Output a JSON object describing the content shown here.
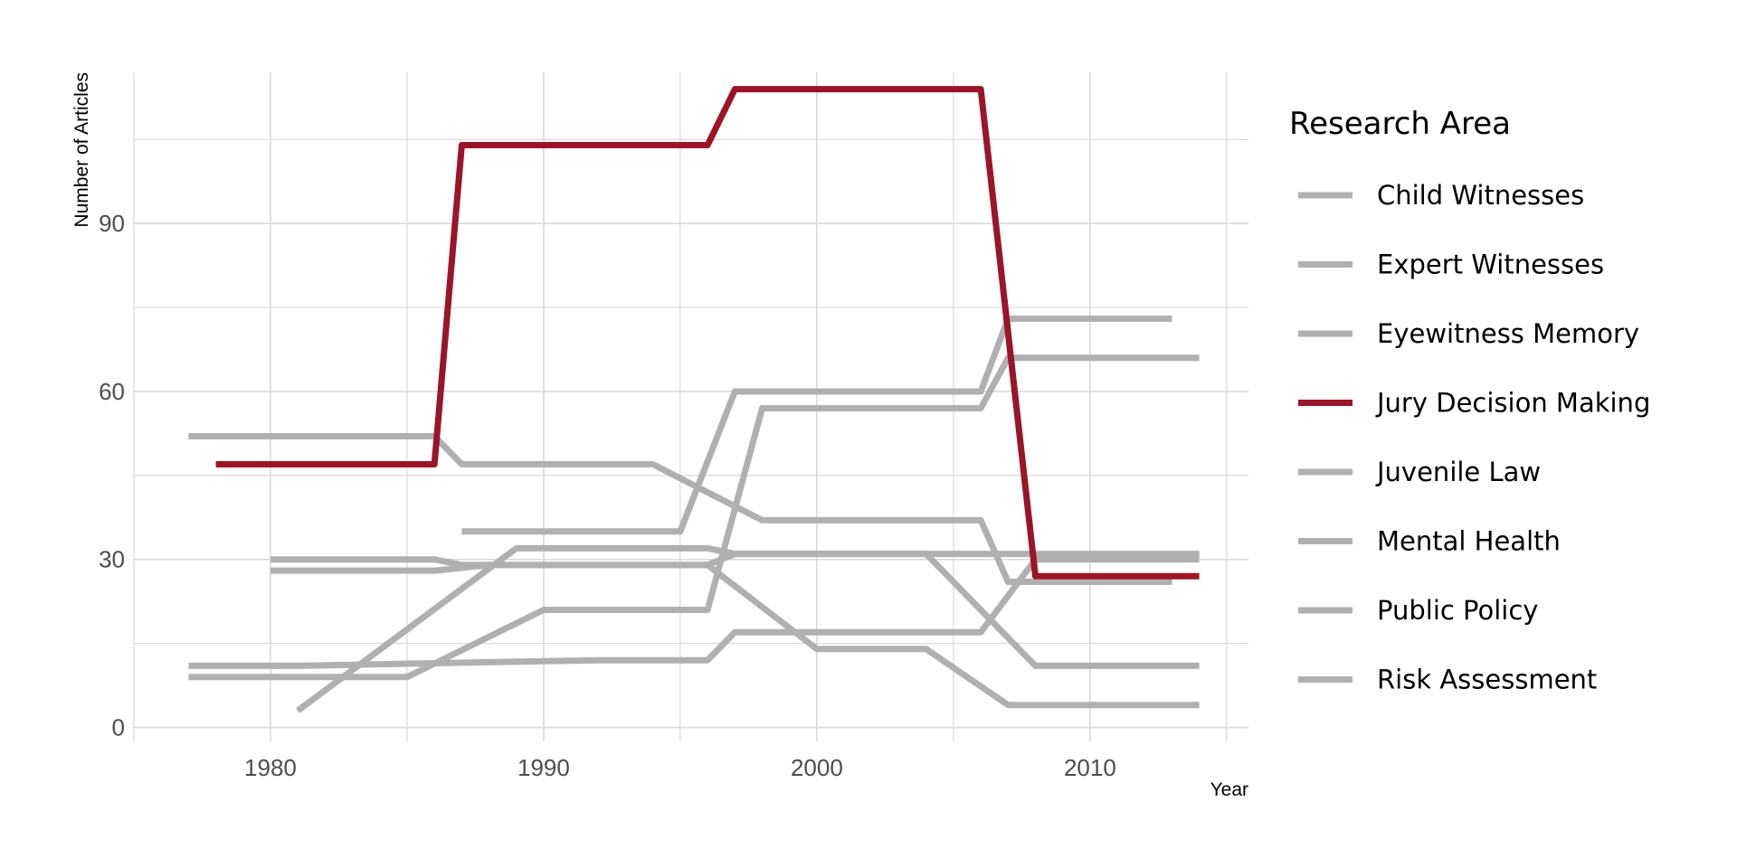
{
  "chart_data": {
    "type": "line",
    "xlabel": "Year",
    "ylabel": "Number of Articles",
    "xlim": [
      1975,
      2015.8
    ],
    "ylim": [
      -2.5,
      117
    ],
    "x_ticks": [
      1980,
      1990,
      2000,
      2010
    ],
    "y_ticks": [
      0,
      30,
      60,
      90
    ],
    "grid": true,
    "legend_title": "Research Area",
    "legend_position": "right",
    "colors": {
      "highlight": "#9B1428",
      "muted": "#B0B0B0",
      "grid": "#D9D9D9"
    },
    "series": [
      {
        "name": "Child Witnesses",
        "highlight": false,
        "points": [
          [
            1981,
            3
          ],
          [
            1989,
            32
          ],
          [
            1996,
            32
          ],
          [
            1997,
            31
          ],
          [
            2014,
            31
          ]
        ]
      },
      {
        "name": "Expert Witnesses",
        "highlight": false,
        "points": [
          [
            1980,
            28
          ],
          [
            1986,
            28
          ],
          [
            1988,
            29
          ],
          [
            1996,
            29
          ],
          [
            2000,
            14
          ],
          [
            2004,
            14
          ],
          [
            2007,
            4
          ],
          [
            2014,
            4
          ]
        ]
      },
      {
        "name": "Eyewitness Memory",
        "highlight": false,
        "points": [
          [
            1977,
            52
          ],
          [
            1986,
            52
          ],
          [
            1987,
            47
          ],
          [
            1994,
            47
          ],
          [
            1998,
            37
          ],
          [
            2006,
            37
          ],
          [
            2007,
            26
          ],
          [
            2013,
            26
          ]
        ]
      },
      {
        "name": "Jury Decision Making",
        "highlight": true,
        "points": [
          [
            1978,
            47
          ],
          [
            1986,
            47
          ],
          [
            1987,
            104
          ],
          [
            1996,
            104
          ],
          [
            1997,
            114
          ],
          [
            2006,
            114
          ],
          [
            2008,
            27
          ],
          [
            2014,
            27
          ]
        ]
      },
      {
        "name": "Juvenile Law",
        "highlight": false,
        "points": [
          [
            1987,
            35
          ],
          [
            1995,
            35
          ],
          [
            1997,
            60
          ],
          [
            2006,
            60
          ],
          [
            2007,
            73
          ],
          [
            2013,
            73
          ]
        ]
      },
      {
        "name": "Mental Health",
        "highlight": false,
        "points": [
          [
            1977,
            9
          ],
          [
            1985,
            9
          ],
          [
            1990,
            21
          ],
          [
            1996,
            21
          ],
          [
            1998,
            57
          ],
          [
            2006,
            57
          ],
          [
            2007,
            66
          ],
          [
            2014,
            66
          ]
        ]
      },
      {
        "name": "Public Policy",
        "highlight": false,
        "points": [
          [
            1977,
            11
          ],
          [
            1981,
            11
          ],
          [
            1992,
            12
          ],
          [
            1996,
            12
          ],
          [
            1997,
            17
          ],
          [
            2006,
            17
          ],
          [
            2008,
            30
          ],
          [
            2014,
            30
          ]
        ]
      },
      {
        "name": "Risk Assessment",
        "highlight": false,
        "points": [
          [
            1980,
            30
          ],
          [
            1986,
            30
          ],
          [
            1987,
            29
          ],
          [
            1995,
            29
          ],
          [
            1996,
            29
          ],
          [
            1997,
            31
          ],
          [
            2004,
            31
          ],
          [
            2008,
            11
          ],
          [
            2014,
            11
          ]
        ]
      }
    ]
  }
}
